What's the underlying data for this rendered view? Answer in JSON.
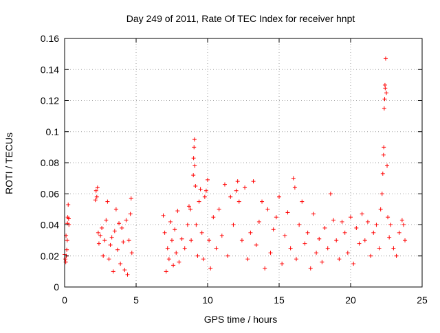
{
  "chart_data": {
    "type": "scatter",
    "title": "Day 249 of 2011, Rate Of TEC Index for receiver hnpt",
    "xlabel": "GPS time / hours",
    "ylabel": "ROTI / TECUs",
    "xlim": [
      0,
      25
    ],
    "ylim": [
      0,
      0.16
    ],
    "xticks": [
      0,
      5,
      10,
      15,
      20,
      25
    ],
    "yticks": [
      0,
      0.02,
      0.04,
      0.06,
      0.08,
      0.1,
      0.12,
      0.14,
      0.16
    ],
    "xtick_labels": [
      "0",
      "5",
      "10",
      "15",
      "20",
      "25"
    ],
    "ytick_labels": [
      "0",
      "0.02",
      "0.04",
      "0.06",
      "0.08",
      "0.1",
      "0.12",
      "0.14",
      "0.16"
    ],
    "grid": true,
    "marker": "plus",
    "colors": {
      "series": "#ff0000",
      "grid": "#a0a0a0",
      "axis": "#000000"
    },
    "series": [
      {
        "points": [
          [
            0.0,
            0.021
          ],
          [
            0.05,
            0.018
          ],
          [
            0.08,
            0.016
          ],
          [
            0.1,
            0.033
          ],
          [
            0.12,
            0.02
          ],
          [
            0.15,
            0.024
          ],
          [
            0.18,
            0.03
          ],
          [
            0.2,
            0.041
          ],
          [
            0.22,
            0.045
          ],
          [
            0.25,
            0.053
          ],
          [
            0.28,
            0.044
          ],
          [
            0.3,
            0.04
          ],
          [
            2.15,
            0.056
          ],
          [
            2.2,
            0.062
          ],
          [
            2.25,
            0.058
          ],
          [
            2.3,
            0.064
          ],
          [
            2.35,
            0.035
          ],
          [
            2.4,
            0.028
          ],
          [
            2.5,
            0.033
          ],
          [
            2.6,
            0.038
          ],
          [
            2.7,
            0.02
          ],
          [
            2.8,
            0.03
          ],
          [
            2.9,
            0.043
          ],
          [
            3.0,
            0.055
          ],
          [
            3.1,
            0.018
          ],
          [
            3.2,
            0.027
          ],
          [
            3.3,
            0.032
          ],
          [
            3.4,
            0.01
          ],
          [
            3.5,
            0.036
          ],
          [
            3.6,
            0.05
          ],
          [
            3.7,
            0.024
          ],
          [
            3.8,
            0.041
          ],
          [
            3.9,
            0.015
          ],
          [
            4.0,
            0.038
          ],
          [
            4.1,
            0.029
          ],
          [
            4.2,
            0.011
          ],
          [
            4.3,
            0.043
          ],
          [
            4.4,
            0.008
          ],
          [
            4.5,
            0.03
          ],
          [
            4.6,
            0.047
          ],
          [
            4.65,
            0.057
          ],
          [
            4.7,
            0.022
          ],
          [
            6.9,
            0.046
          ],
          [
            7.0,
            0.035
          ],
          [
            7.1,
            0.01
          ],
          [
            7.2,
            0.025
          ],
          [
            7.3,
            0.018
          ],
          [
            7.4,
            0.042
          ],
          [
            7.5,
            0.03
          ],
          [
            7.6,
            0.014
          ],
          [
            7.7,
            0.037
          ],
          [
            7.8,
            0.022
          ],
          [
            7.9,
            0.049
          ],
          [
            8.0,
            0.016
          ],
          [
            8.2,
            0.031
          ],
          [
            8.4,
            0.025
          ],
          [
            8.6,
            0.04
          ],
          [
            8.7,
            0.052
          ],
          [
            8.8,
            0.05
          ],
          [
            8.85,
            0.03
          ],
          [
            9.0,
            0.072
          ],
          [
            9.02,
            0.083
          ],
          [
            9.05,
            0.09
          ],
          [
            9.08,
            0.095
          ],
          [
            9.1,
            0.078
          ],
          [
            9.15,
            0.065
          ],
          [
            9.2,
            0.04
          ],
          [
            9.3,
            0.02
          ],
          [
            9.4,
            0.055
          ],
          [
            9.5,
            0.063
          ],
          [
            9.6,
            0.035
          ],
          [
            9.7,
            0.018
          ],
          [
            9.8,
            0.058
          ],
          [
            9.9,
            0.062
          ],
          [
            10.0,
            0.069
          ],
          [
            10.1,
            0.03
          ],
          [
            10.2,
            0.012
          ],
          [
            10.4,
            0.045
          ],
          [
            10.6,
            0.025
          ],
          [
            10.8,
            0.05
          ],
          [
            11.0,
            0.033
          ],
          [
            11.2,
            0.066
          ],
          [
            11.4,
            0.02
          ],
          [
            11.6,
            0.058
          ],
          [
            11.8,
            0.04
          ],
          [
            12.0,
            0.062
          ],
          [
            12.1,
            0.068
          ],
          [
            12.2,
            0.055
          ],
          [
            12.4,
            0.03
          ],
          [
            12.6,
            0.064
          ],
          [
            12.8,
            0.018
          ],
          [
            13.0,
            0.035
          ],
          [
            13.2,
            0.068
          ],
          [
            13.4,
            0.027
          ],
          [
            13.6,
            0.042
          ],
          [
            13.8,
            0.055
          ],
          [
            14.0,
            0.012
          ],
          [
            14.2,
            0.05
          ],
          [
            14.4,
            0.022
          ],
          [
            14.6,
            0.037
          ],
          [
            14.8,
            0.045
          ],
          [
            15.0,
            0.058
          ],
          [
            15.2,
            0.015
          ],
          [
            15.4,
            0.033
          ],
          [
            15.6,
            0.048
          ],
          [
            15.8,
            0.025
          ],
          [
            16.0,
            0.07
          ],
          [
            16.1,
            0.064
          ],
          [
            16.2,
            0.018
          ],
          [
            16.4,
            0.04
          ],
          [
            16.6,
            0.055
          ],
          [
            16.8,
            0.028
          ],
          [
            17.0,
            0.035
          ],
          [
            17.2,
            0.012
          ],
          [
            17.4,
            0.047
          ],
          [
            17.6,
            0.022
          ],
          [
            17.8,
            0.031
          ],
          [
            18.0,
            0.016
          ],
          [
            18.2,
            0.038
          ],
          [
            18.4,
            0.025
          ],
          [
            18.6,
            0.06
          ],
          [
            18.8,
            0.043
          ],
          [
            19.0,
            0.03
          ],
          [
            19.2,
            0.018
          ],
          [
            19.4,
            0.042
          ],
          [
            19.6,
            0.035
          ],
          [
            19.8,
            0.022
          ],
          [
            20.0,
            0.045
          ],
          [
            20.2,
            0.015
          ],
          [
            20.4,
            0.038
          ],
          [
            20.6,
            0.028
          ],
          [
            20.8,
            0.047
          ],
          [
            21.0,
            0.03
          ],
          [
            21.2,
            0.042
          ],
          [
            21.4,
            0.02
          ],
          [
            21.6,
            0.035
          ],
          [
            21.8,
            0.04
          ],
          [
            22.0,
            0.025
          ],
          [
            22.1,
            0.05
          ],
          [
            22.2,
            0.06
          ],
          [
            22.25,
            0.073
          ],
          [
            22.3,
            0.085
          ],
          [
            22.32,
            0.09
          ],
          [
            22.35,
            0.115
          ],
          [
            22.38,
            0.121
          ],
          [
            22.4,
            0.13
          ],
          [
            22.42,
            0.128
          ],
          [
            22.45,
            0.147
          ],
          [
            22.5,
            0.125
          ],
          [
            22.55,
            0.078
          ],
          [
            22.6,
            0.045
          ],
          [
            22.7,
            0.032
          ],
          [
            22.8,
            0.04
          ],
          [
            23.0,
            0.025
          ],
          [
            23.2,
            0.02
          ],
          [
            23.4,
            0.035
          ],
          [
            23.6,
            0.043
          ],
          [
            23.7,
            0.04
          ],
          [
            23.8,
            0.03
          ]
        ]
      }
    ]
  }
}
